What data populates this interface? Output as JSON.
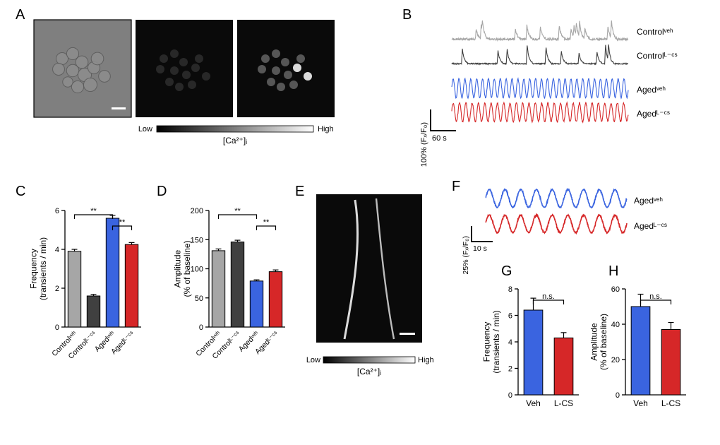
{
  "colors": {
    "control_veh": "#a6a6a6",
    "control_lcs": "#404040",
    "aged_veh": "#3a64e0",
    "aged_lcs": "#d62728",
    "black": "#000000",
    "white": "#ffffff",
    "grad_start": "#000000",
    "grad_end": "#ffffff"
  },
  "panel_label_fontsize": 20,
  "axis_fontsize": 12,
  "xlabel_fontsize": 10,
  "panelA": {
    "label": "A",
    "images": {
      "img1_bg": "#7f7f7f",
      "img2_bg": "#0a0a0a",
      "img3_bg": "#0a0a0a"
    },
    "colorbar": {
      "low_label": "Low",
      "high_label": "High",
      "unit": "[Ca²⁺]ᵢ"
    }
  },
  "panelB": {
    "label": "B",
    "traces": [
      {
        "label": "Controlᵛᵉʰ",
        "color": "#a6a6a6"
      },
      {
        "label": "Controlᴸ⁻ᶜˢ",
        "color": "#404040"
      },
      {
        "label": "Agedᵛᵉʰ",
        "color": "#3a64e0"
      },
      {
        "label": "Agedᴸ⁻ᶜˢ",
        "color": "#d62728"
      }
    ],
    "scalebar": {
      "y_label": "100% (Fₓ/F₀)",
      "x_label": "60 s"
    }
  },
  "panelC": {
    "label": "C",
    "title": "Frequency",
    "ylabel": "(transients / min)",
    "ylim": [
      0,
      6
    ],
    "ytick_step": 2,
    "bars": [
      {
        "name": "Controlᵛᵉʰ",
        "value": 3.9,
        "err": 0.1,
        "color": "#a6a6a6"
      },
      {
        "name": "Controlᴸ⁻ᶜˢ",
        "value": 1.6,
        "err": 0.08,
        "color": "#404040"
      },
      {
        "name": "Agedᵛᵉʰ",
        "value": 5.6,
        "err": 0.15,
        "color": "#3a64e0"
      },
      {
        "name": "Agedᴸ⁻ᶜˢ",
        "value": 4.25,
        "err": 0.1,
        "color": "#d62728"
      }
    ],
    "sig": [
      {
        "from": 0,
        "to": 2,
        "text": "**"
      },
      {
        "from": 2,
        "to": 3,
        "text": "**"
      }
    ],
    "bar_width": 0.68
  },
  "panelD": {
    "label": "D",
    "title": "Amplitude",
    "ylabel": "(% of baseline)",
    "ylim": [
      0,
      200
    ],
    "ytick_step": 50,
    "bars": [
      {
        "name": "Controlᵛᵉʰ",
        "value": 131,
        "err": 3,
        "color": "#a6a6a6"
      },
      {
        "name": "Controlᴸ⁻ᶜˢ",
        "value": 146,
        "err": 3,
        "color": "#404040"
      },
      {
        "name": "Agedᵛᵉʰ",
        "value": 79,
        "err": 2,
        "color": "#3a64e0"
      },
      {
        "name": "Agedᴸ⁻ᶜˢ",
        "value": 95,
        "err": 3,
        "color": "#d62728"
      }
    ],
    "sig": [
      {
        "from": 0,
        "to": 2,
        "text": "**"
      },
      {
        "from": 2,
        "to": 3,
        "text": "**"
      }
    ],
    "bar_width": 0.68
  },
  "panelE": {
    "label": "E",
    "img_bg": "#0a0a0a",
    "colorbar": {
      "low_label": "Low",
      "high_label": "High",
      "unit": "[Ca²⁺]ᵢ"
    }
  },
  "panelF": {
    "label": "F",
    "traces": [
      {
        "label": "Agedᵛᵉʰ",
        "color": "#3a64e0"
      },
      {
        "label": "Agedᴸ⁻ᶜˢ",
        "color": "#d62728"
      }
    ],
    "scalebar": {
      "y_label": "25% (Fₓ/F₀)",
      "x_label": "10 s"
    }
  },
  "panelG": {
    "label": "G",
    "title": "Frequency",
    "ylabel": "(transients / min)",
    "ylim": [
      0,
      8
    ],
    "ytick_step": 2,
    "bars": [
      {
        "name": "Veh",
        "value": 6.4,
        "err": 0.9,
        "color": "#3a64e0"
      },
      {
        "name": "L-CS",
        "value": 4.3,
        "err": 0.4,
        "color": "#d62728"
      }
    ],
    "sig": [
      {
        "from": 0,
        "to": 1,
        "text": "n.s."
      }
    ],
    "bar_width": 0.62
  },
  "panelH": {
    "label": "H",
    "title": "Amplitude",
    "ylabel": "(% of baseline)",
    "ylim": [
      0,
      60
    ],
    "ytick_step": 20,
    "bars": [
      {
        "name": "Veh",
        "value": 50,
        "err": 7,
        "color": "#3a64e0"
      },
      {
        "name": "L-CS",
        "value": 37,
        "err": 4,
        "color": "#d62728"
      }
    ],
    "sig": [
      {
        "from": 0,
        "to": 1,
        "text": "n.s."
      }
    ],
    "bar_width": 0.62
  }
}
